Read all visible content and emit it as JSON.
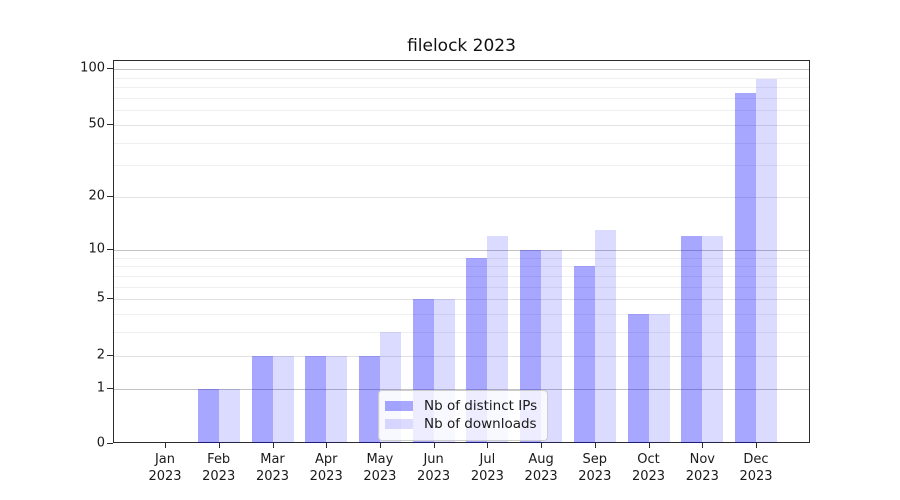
{
  "title": "filelock 2023",
  "legend": {
    "items": [
      {
        "label": "Nb of distinct IPs",
        "color": "rgba(0,0,255,0.345)"
      },
      {
        "label": "Nb of downloads",
        "color": "rgba(0,0,255,0.140)"
      }
    ]
  },
  "axes": {
    "y_tick_labels": [
      "100",
      "50",
      "20",
      "10",
      "5",
      "2",
      "1",
      "0"
    ],
    "x_months": [
      "Jan",
      "Feb",
      "Mar",
      "Apr",
      "May",
      "Jun",
      "Jul",
      "Aug",
      "Sep",
      "Oct",
      "Nov",
      "Dec"
    ],
    "x_year": "2023"
  },
  "chart_data": {
    "type": "bar",
    "title": "filelock 2023",
    "categories": [
      "Jan 2023",
      "Feb 2023",
      "Mar 2023",
      "Apr 2023",
      "May 2023",
      "Jun 2023",
      "Jul 2023",
      "Aug 2023",
      "Sep 2023",
      "Oct 2023",
      "Nov 2023",
      "Dec 2023"
    ],
    "series": [
      {
        "name": "Nb of distinct IPs",
        "color": "rgba(0,0,255,0.345)",
        "values": [
          0,
          1,
          2,
          2,
          2,
          5,
          9,
          10,
          8,
          4,
          12,
          74
        ]
      },
      {
        "name": "Nb of downloads",
        "color": "rgba(0,0,255,0.140)",
        "values": [
          0,
          1,
          2,
          2,
          3,
          5,
          12,
          10,
          13,
          4,
          12,
          89
        ]
      }
    ],
    "xlabel": "",
    "ylabel": "",
    "y_scale": "log1p",
    "ylim": [
      0,
      110
    ],
    "y_major_ticks": [
      1,
      10,
      100
    ],
    "y_labeled_minor_ticks": [
      2,
      5,
      20,
      50
    ],
    "y_unlabeled_minor_ticks": [
      3,
      4,
      6,
      7,
      8,
      9,
      30,
      40,
      60,
      70,
      80,
      90
    ],
    "grid": true,
    "legend_position": "lower center"
  }
}
